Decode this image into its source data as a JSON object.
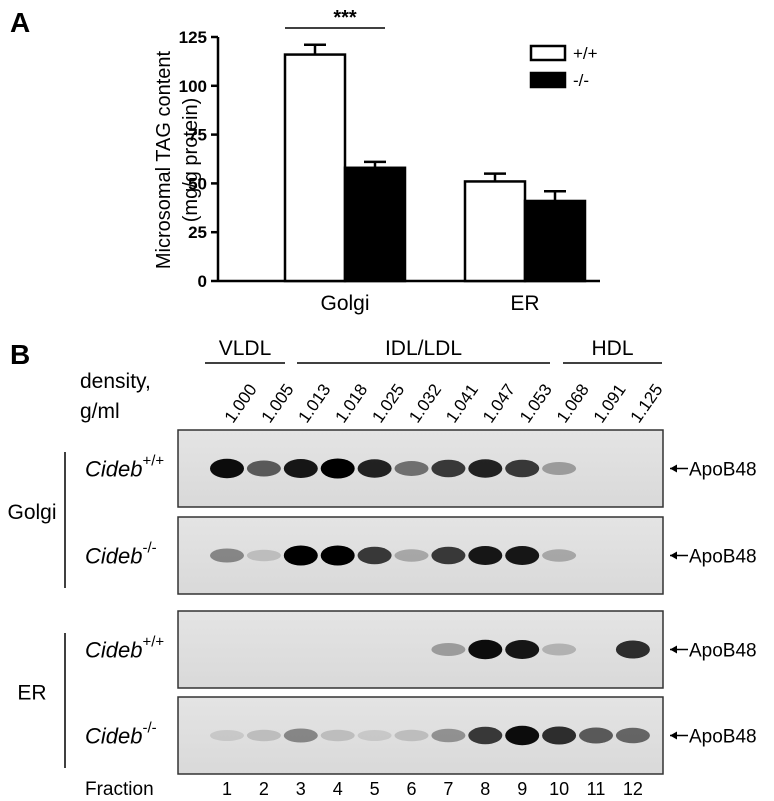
{
  "chart_data": {
    "type": "bar",
    "panel_label": "A",
    "ylabel": [
      "Microsomal TAG content",
      "(mg/g protein)"
    ],
    "categories": [
      "Golgi",
      "ER"
    ],
    "series": [
      {
        "name": "+/+",
        "color": "#ffffff",
        "values": [
          116,
          51
        ],
        "errors": [
          5,
          4
        ]
      },
      {
        "name": "-/-",
        "color": "#000000",
        "values": [
          58,
          41
        ],
        "errors": [
          3,
          5
        ]
      }
    ],
    "ylim": [
      0,
      125
    ],
    "yticks": [
      0,
      25,
      50,
      75,
      100,
      125
    ],
    "annotations": [
      {
        "text": "***"
      }
    ]
  },
  "blot": {
    "panel_label": "B",
    "groups": [
      "VLDL",
      "IDL/LDL",
      "HDL"
    ],
    "density_label": [
      "density,",
      "g/ml"
    ],
    "densities": [
      "1.000",
      "1.005",
      "1.013",
      "1.018",
      "1.025",
      "1.032",
      "1.041",
      "1.047",
      "1.053",
      "1.068",
      "1.091",
      "1.125"
    ],
    "fraction_label": "Fraction",
    "fractions": [
      "1",
      "2",
      "3",
      "4",
      "5",
      "6",
      "7",
      "8",
      "9",
      "10",
      "11",
      "12"
    ],
    "organelles": [
      {
        "label": "Golgi",
        "rows": [
          {
            "genotype": "Cideb",
            "superscript": "+/+",
            "band": "ApoB48"
          },
          {
            "genotype": "Cideb",
            "superscript": "-/-",
            "band": "ApoB48"
          }
        ]
      },
      {
        "label": "ER",
        "rows": [
          {
            "genotype": "Cideb",
            "superscript": "+/+",
            "band": "ApoB48"
          },
          {
            "genotype": "Cideb",
            "superscript": "-/-",
            "band": "ApoB48"
          }
        ]
      }
    ]
  }
}
